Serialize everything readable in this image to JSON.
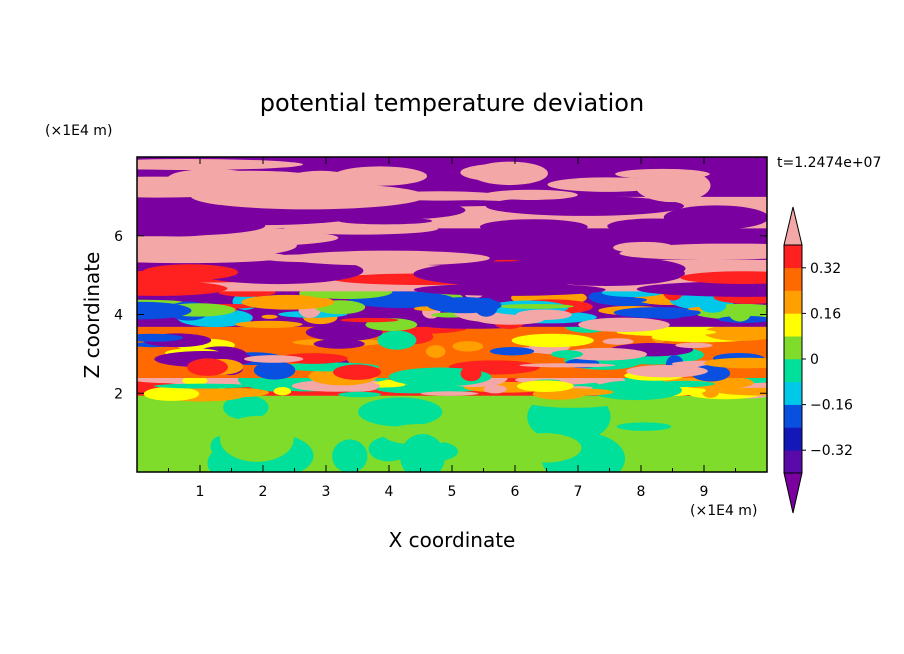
{
  "chart_data": {
    "type": "heatmap",
    "title": "potential temperature deviation",
    "xlabel": "X coordinate",
    "ylabel": "Z coordinate",
    "x_unit": "(×1E4 m)",
    "y_unit": "(×1E4 m)",
    "time_label": "t=1.2474e+07",
    "xlim": [
      0,
      10
    ],
    "ylim": [
      0,
      8
    ],
    "x_ticks": [
      "1",
      "2",
      "3",
      "4",
      "5",
      "6",
      "7",
      "8",
      "9"
    ],
    "y_ticks": [
      "2",
      "4",
      "6"
    ],
    "colorbar": {
      "levels": [
        -0.4,
        -0.32,
        -0.24,
        -0.16,
        -0.08,
        0,
        0.08,
        0.16,
        0.24,
        0.32,
        0.4
      ],
      "labels": [
        "0.32",
        "0.16",
        "0",
        "−0.16",
        "−0.32"
      ],
      "label_values": [
        0.32,
        0.16,
        0,
        -0.16,
        -0.32
      ],
      "colors": [
        "#7a00a0",
        "#5a0aa8",
        "#1418b8",
        "#0a50e0",
        "#00c8e8",
        "#00e09a",
        "#7fdc2a",
        "#ffff00",
        "#ffa000",
        "#ff6a00",
        "#ff2020",
        "#f4a7a7"
      ],
      "extend_low_color": "#7a00a0",
      "extend_high_color": "#f4a7a7"
    },
    "bands": [
      {
        "zmin": 0.0,
        "zmax": 1.95,
        "base": "#7fdc2a",
        "accents": [
          "#00e09a",
          "#7fdc2a",
          "#00e09a"
        ],
        "pattern": "smooth"
      },
      {
        "zmin": 1.95,
        "zmax": 2.4,
        "base": "#ff2020",
        "accents": [
          "#ffa000",
          "#ffff00",
          "#f4a7a7",
          "#00e09a"
        ],
        "pattern": "mixed"
      },
      {
        "zmin": 2.4,
        "zmax": 3.7,
        "base": "#ff6a00",
        "accents": [
          "#ffa000",
          "#ff2020",
          "#ffff00",
          "#00e09a",
          "#0a50e0",
          "#7a00a0",
          "#f4a7a7"
        ],
        "pattern": "mixed"
      },
      {
        "zmin": 3.7,
        "zmax": 4.6,
        "base": "#7a00a0",
        "accents": [
          "#f4a7a7",
          "#ff2020",
          "#ffa000",
          "#0a50e0",
          "#00c8e8",
          "#7fdc2a"
        ],
        "pattern": "mixed"
      },
      {
        "zmin": 4.6,
        "zmax": 5.4,
        "base": "#f4a7a7",
        "accents": [
          "#7a00a0",
          "#ff2020"
        ],
        "pattern": "layered"
      },
      {
        "zmin": 5.4,
        "zmax": 6.2,
        "base": "#7a00a0",
        "accents": [
          "#f4a7a7"
        ],
        "pattern": "layered"
      },
      {
        "zmin": 6.2,
        "zmax": 7.0,
        "base": "#f4a7a7",
        "accents": [
          "#7a00a0"
        ],
        "pattern": "layered"
      },
      {
        "zmin": 7.0,
        "zmax": 8.0,
        "base": "#7a00a0",
        "accents": [
          "#f4a7a7"
        ],
        "pattern": "layered"
      }
    ]
  }
}
